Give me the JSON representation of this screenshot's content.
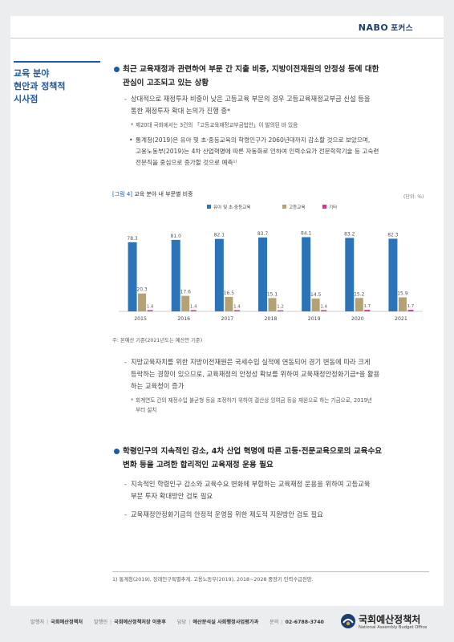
{
  "header": {
    "brand": "NABO",
    "brand_sub": "포커스"
  },
  "side": {
    "title_lines": [
      "교육 분야",
      "현안과 정책적",
      "시사점"
    ]
  },
  "section1": {
    "heading_l1": "최근 교육재정과 관련하여 부문 간 지출 비중, 지방이전재원의 안정성 등에 대한",
    "heading_l2": "관심이 고조되고 있는 상황",
    "dash1_l1": "상대적으로 재정투자 비중이 낮은 고등교육 부문의 경우 고등교육재정교부금 신설 등을",
    "dash1_l2": "통한 재정투자 확대 논의가 진행 중*",
    "note1": "제20대 국회에서는 3건의 「고등교육재정교부금법안」이 발의된 바 있음",
    "sub1_l1": "통계청(2019)은 유아 및 초·중등교육의 학령인구가 2060년대까지 감소할 것으로 보았으며,",
    "sub1_l2": "고용노동부(2019)는 4차 산업혁명에 따른 자동화로 인하여 인력수요가 전문학학기술 등 고숙련",
    "sub1_l3": "전문직을 중심으로 증가할 것으로 예측¹⁾"
  },
  "figure": {
    "label": "[그림 4]",
    "title": "교육 분야 내 부문별 비중",
    "unit": "(단위: %)",
    "source": "주: 본예산 기준(2021년도는 예산안 기준)"
  },
  "chart_data": {
    "type": "bar",
    "categories": [
      "2015",
      "2016",
      "2017",
      "2018",
      "2019",
      "2020",
      "2021"
    ],
    "series": [
      {
        "name": "유아 및 초·중등교육",
        "values": [
          78.3,
          81.0,
          82.1,
          83.7,
          84.1,
          83.2,
          82.3
        ],
        "color": "#2b74b8"
      },
      {
        "name": "고등교육",
        "values": [
          20.3,
          17.6,
          16.5,
          15.1,
          14.5,
          15.2,
          15.9
        ],
        "color": "#b5a172"
      },
      {
        "name": "기타",
        "values": [
          1.4,
          1.4,
          1.4,
          1.2,
          1.4,
          1.7,
          1.7
        ],
        "color": "#d8338f"
      }
    ],
    "labels": [
      [
        "78.3",
        "81.0",
        "82.1",
        "83.7",
        "84.1",
        "83.2",
        "82.3"
      ],
      [
        "20.3",
        "17.6",
        "16.5",
        "15.1",
        "14.5",
        "15.2",
        "15.9"
      ],
      [
        "1.4",
        "1.4",
        "1.4",
        "1.2",
        "1.4",
        "1.7",
        "1.7"
      ]
    ],
    "ylim": [
      0,
      100
    ],
    "legend": "top-center",
    "grid": false
  },
  "section1b": {
    "dash2_l1": "지방교육자치를 위한 지방이전재원은 국세수입 실적에 연동되어 경기 변동에 따라 크게",
    "dash2_l2": "등락하는 경향이 있으므로, 교육재정의 안정성 확보를 위하여 교육재정안정화기금*을 활용",
    "dash2_l3": "하는 교육청이 증가",
    "note2_l1": "회계연도 간의 재정수입 불균형 등을 조정하기 위하여 결산상 잉여금 등을 재원으로 하는 기금으로, 2019년",
    "note2_l2": "부터 설치"
  },
  "section2": {
    "heading_l1": "학령인구의 지속적인 감소, 4차 산업 혁명에 따른 고등·전문교육으로의 교육수요",
    "heading_l2": "변화 등을 고려한 합리적인 교육재정 운용 필요",
    "dash1_l1": "지속적인 학령인구 감소와 교육수요 변화에 부합하는 교육재정 운용을 위하여 고등교육",
    "dash1_l2": "부문 투자 확대방안 검토 필요",
    "dash2": "교육재정안정화기금의 안정적 운영을 위한 제도적 지원방안 검토 필요"
  },
  "footnote": "1) 통계청(2019), 장래인구특별추계. 고용노동부(2019), 2018~2028 중장기 인력수급전망.",
  "footer": {
    "publisher_k": "발행처",
    "publisher_v": "국회예산정책처",
    "issuer_k": "발행인",
    "issuer_v": "국회예산정책처장 이종후",
    "contact_k": "담당",
    "contact_v": "예산분석실 사회행정사업평가과",
    "phone_k": "문의",
    "phone_v": "02-6788-3740"
  },
  "logo": {
    "name": "국회예산정책처",
    "english": "National Assembly Budget Office"
  }
}
